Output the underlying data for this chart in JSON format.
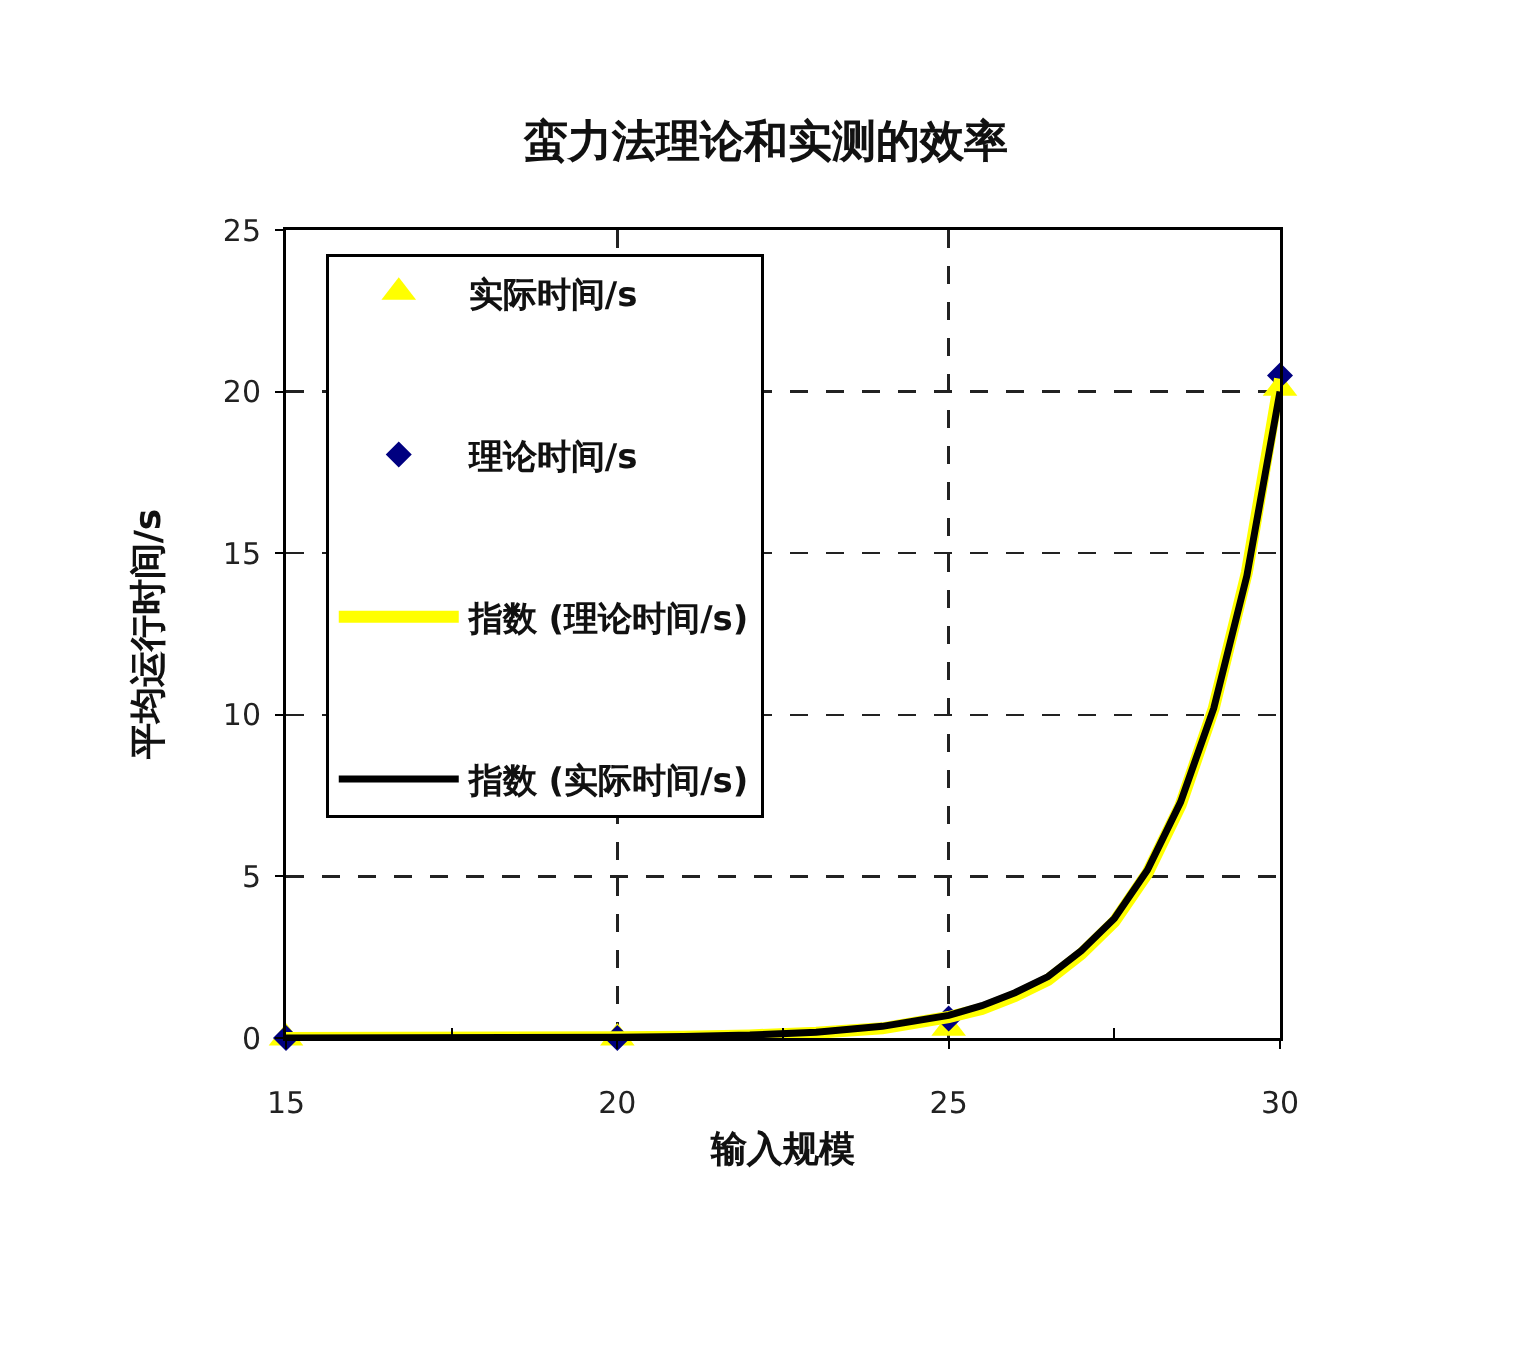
{
  "chart_data": {
    "type": "scatter",
    "title": "蛮力法理论和实测的效率",
    "xlabel": "输入规模",
    "ylabel": "平均运行时间/s",
    "xlim": [
      15,
      30
    ],
    "xticks": [
      15,
      {
        "value": 17.5,
        "label": null
      },
      20,
      {
        "value": 22.5,
        "label": null
      },
      25,
      {
        "value": 27.5,
        "label": null
      },
      30
    ],
    "ylim": [
      0,
      25
    ],
    "yticks": [
      0,
      5,
      10,
      15,
      20,
      25
    ],
    "grid": true,
    "legend": "top left",
    "line_style": "solid",
    "series": [
      {
        "name": "实际时间/s",
        "type": "scatter",
        "marker": "triangle",
        "color": "#ffff00",
        "x": [
          15,
          20,
          25,
          30
        ],
        "values": [
          0,
          0,
          0.3,
          20.1
        ]
      },
      {
        "name": "理论时间/s",
        "type": "scatter",
        "marker": "diamond",
        "color": "#000080",
        "x": [
          15,
          20,
          25,
          30
        ],
        "values": [
          0,
          0,
          0.6,
          20.5
        ]
      },
      {
        "name": "指数 (理论时间/s)",
        "type": "line",
        "color": "#ffff00",
        "x": [
          15,
          20,
          21,
          22,
          23,
          24,
          25,
          25.5,
          26,
          26.5,
          27,
          27.5,
          28,
          28.5,
          29,
          29.5,
          30
        ],
        "values": [
          0,
          0.02,
          0.04,
          0.08,
          0.16,
          0.3,
          0.65,
          0.9,
          1.3,
          1.8,
          2.6,
          3.6,
          5.1,
          7.2,
          10.2,
          14.4,
          20.4
        ]
      },
      {
        "name": "指数 (实际时间/s)",
        "type": "line",
        "color": "#000000",
        "x": [
          15,
          20,
          21,
          22,
          23,
          24,
          25,
          25.5,
          26,
          26.5,
          27,
          27.5,
          28,
          28.5,
          29,
          29.5,
          30
        ],
        "values": [
          0,
          0.02,
          0.05,
          0.09,
          0.18,
          0.36,
          0.7,
          1.0,
          1.4,
          1.9,
          2.7,
          3.7,
          5.2,
          7.3,
          10.2,
          14.3,
          20.0
        ]
      }
    ]
  }
}
